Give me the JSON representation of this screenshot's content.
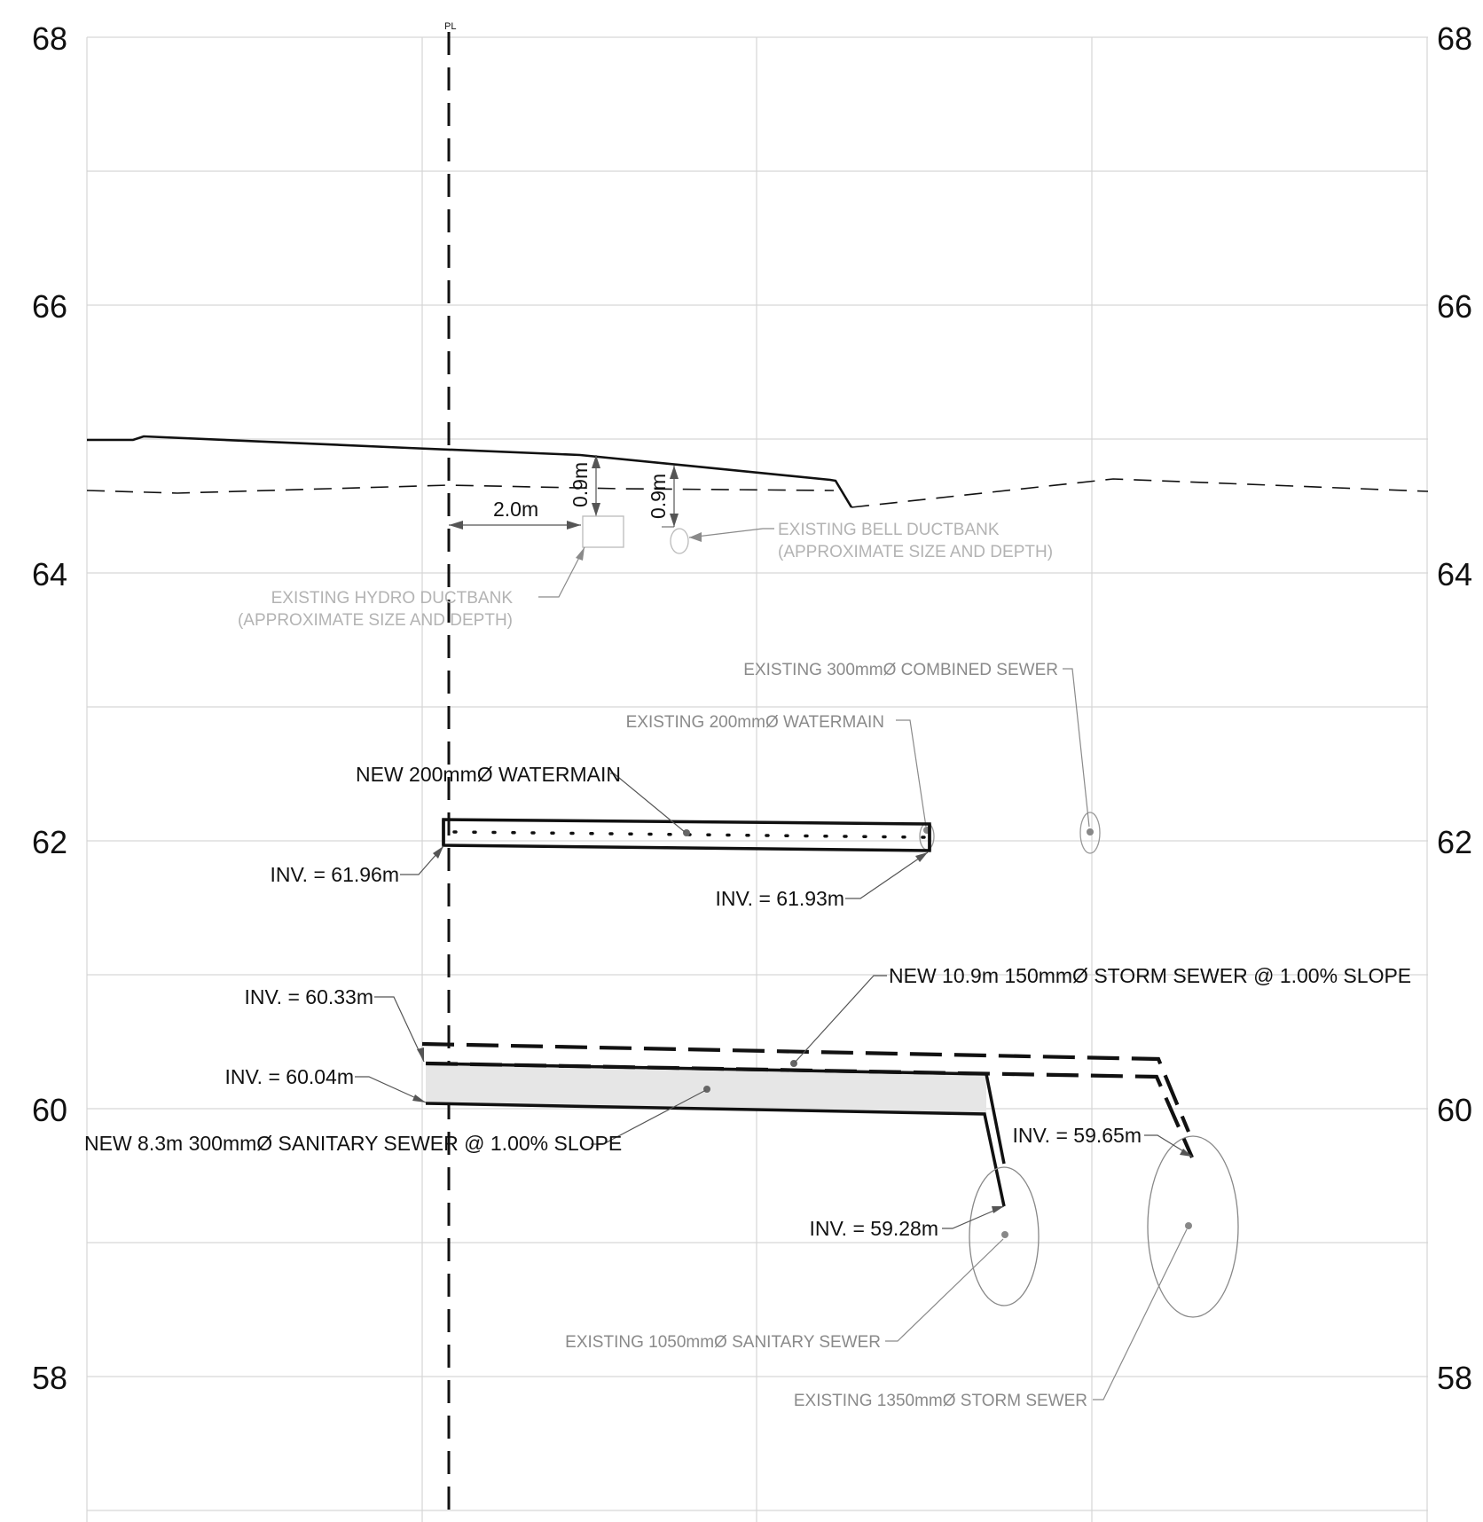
{
  "elevations": {
    "left": [
      "68",
      "66",
      "64",
      "62",
      "60",
      "58"
    ],
    "right": [
      "68",
      "66",
      "64",
      "62",
      "60",
      "58"
    ]
  },
  "property_line_symbol": "PL",
  "dimensions": {
    "offset": "2.0m",
    "hydro_depth": "0.9m",
    "bell_depth": "0.9m"
  },
  "labels": {
    "hydro_line1": "EXISTING HYDRO DUCTBANK",
    "hydro_line2": "(APPROXIMATE SIZE AND DEPTH)",
    "bell_line1": "EXISTING  BELL DUCTBANK",
    "bell_line2": "(APPROXIMATE SIZE AND DEPTH)",
    "combined_sewer": "EXISTING 300mmØ COMBINED SEWER",
    "existing_watermain": "EXISTING 200mmØ WATERMAIN",
    "new_watermain": "NEW 200mmØ WATERMAIN",
    "inv_wm_left": "INV. = 61.96m",
    "inv_wm_right": "INV. = 61.93m",
    "new_storm": "NEW 10.9m 150mmØ STORM SEWER @ 1.00% SLOPE",
    "inv_storm_start": "INV. = 60.33m",
    "inv_san_start": "INV. = 60.04m",
    "new_sanitary": "NEW 8.3m 300mmØ SANITARY SEWER @ 1.00% SLOPE",
    "inv_storm_end": "INV. = 59.65m",
    "inv_san_end": "INV. = 59.28m",
    "existing_sanitary": "EXISTING 1050mmØ SANITARY SEWER",
    "existing_storm": "EXISTING 1350mmØ STORM SEWER"
  }
}
